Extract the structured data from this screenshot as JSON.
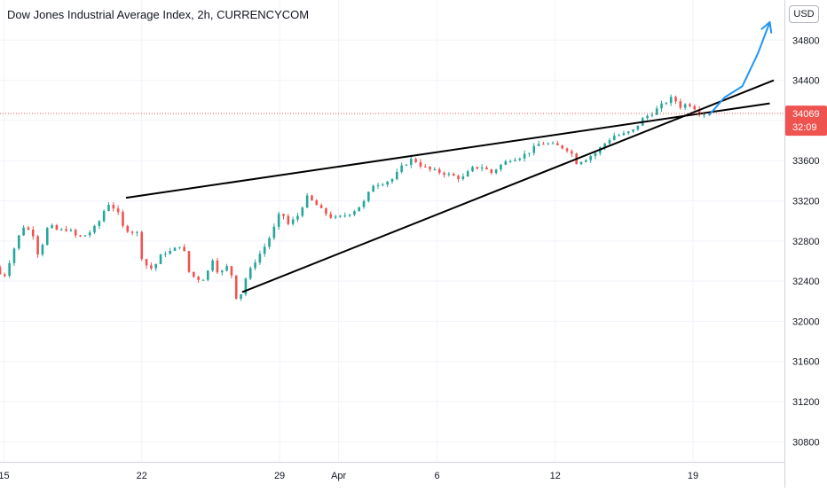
{
  "header": {
    "title": "Dow Jones Industrial Average Index, 2h, CURRENCYCOM",
    "currency": "USD"
  },
  "colors": {
    "up": "#26a69a",
    "down": "#ef5350",
    "trendline": "#000000",
    "projection": "#2196f3",
    "grid": "#f0f3fa",
    "last_price": "#ef5350"
  },
  "chart_data": {
    "type": "candlestick",
    "title": "Dow Jones Industrial Average Index, 2h, CURRENCYCOM",
    "ylim": [
      30600,
      35200
    ],
    "y_ticks": [
      30800,
      31200,
      31600,
      32000,
      32400,
      32800,
      33200,
      33600,
      34000,
      34400,
      34800
    ],
    "x_ticks": [
      {
        "label": "15",
        "day": 15
      },
      {
        "label": "22",
        "day": 22
      },
      {
        "label": "29",
        "day": 29
      },
      {
        "label": "Apr",
        "day": 32
      },
      {
        "label": "6",
        "day": 37
      },
      {
        "label": "12",
        "day": 43
      },
      {
        "label": "19",
        "day": 50
      }
    ],
    "x_domain": [
      14.8,
      54.1
    ],
    "last_price": "34069",
    "countdown": "32:09",
    "price_path": [
      [
        14.8,
        32540
      ],
      [
        15.2,
        32420
      ],
      [
        15.8,
        32750
      ],
      [
        16.2,
        32950
      ],
      [
        16.7,
        32880
      ],
      [
        17.0,
        32650
      ],
      [
        17.5,
        32960
      ],
      [
        18.0,
        32900
      ],
      [
        18.5,
        32920
      ],
      [
        19.0,
        32830
      ],
      [
        19.5,
        32870
      ],
      [
        20.0,
        32960
      ],
      [
        20.5,
        33180
      ],
      [
        21.0,
        33100
      ],
      [
        21.2,
        32950
      ],
      [
        21.6,
        32900
      ],
      [
        22.0,
        32880
      ],
      [
        22.3,
        32580
      ],
      [
        22.8,
        32520
      ],
      [
        23.3,
        32680
      ],
      [
        23.8,
        32700
      ],
      [
        24.3,
        32780
      ],
      [
        24.6,
        32500
      ],
      [
        25.0,
        32420
      ],
      [
        25.5,
        32430
      ],
      [
        25.8,
        32640
      ],
      [
        26.2,
        32450
      ],
      [
        26.5,
        32560
      ],
      [
        26.9,
        32430
      ],
      [
        27.1,
        32160
      ],
      [
        27.5,
        32420
      ],
      [
        28.0,
        32600
      ],
      [
        28.5,
        32750
      ],
      [
        28.9,
        32900
      ],
      [
        29.3,
        33100
      ],
      [
        29.7,
        32960
      ],
      [
        30.2,
        33060
      ],
      [
        30.6,
        33240
      ],
      [
        31.0,
        33180
      ],
      [
        31.4,
        33100
      ],
      [
        32.0,
        33020
      ],
      [
        32.5,
        33050
      ],
      [
        33.0,
        33100
      ],
      [
        33.5,
        33180
      ],
      [
        34.0,
        33360
      ],
      [
        34.5,
        33380
      ],
      [
        35.0,
        33420
      ],
      [
        35.5,
        33550
      ],
      [
        36.0,
        33620
      ],
      [
        36.5,
        33540
      ],
      [
        37.0,
        33500
      ],
      [
        37.5,
        33480
      ],
      [
        38.0,
        33450
      ],
      [
        38.5,
        33420
      ],
      [
        39.0,
        33520
      ],
      [
        39.5,
        33540
      ],
      [
        40.0,
        33480
      ],
      [
        40.5,
        33560
      ],
      [
        41.0,
        33620
      ],
      [
        41.5,
        33640
      ],
      [
        42.0,
        33700
      ],
      [
        42.5,
        33780
      ],
      [
        43.0,
        33760
      ],
      [
        43.5,
        33740
      ],
      [
        44.0,
        33700
      ],
      [
        44.3,
        33580
      ],
      [
        44.8,
        33620
      ],
      [
        45.3,
        33680
      ],
      [
        45.8,
        33780
      ],
      [
        46.2,
        33850
      ],
      [
        46.7,
        33860
      ],
      [
        47.2,
        33900
      ],
      [
        47.7,
        34020
      ],
      [
        48.2,
        34080
      ],
      [
        48.7,
        34160
      ],
      [
        49.2,
        34230
      ],
      [
        49.6,
        34140
      ],
      [
        50.0,
        34170
      ],
      [
        50.3,
        34130
      ],
      [
        50.6,
        34069
      ]
    ],
    "trendlines": [
      {
        "name": "upper",
        "from": [
          21.2,
          33230
        ],
        "to": [
          53.9,
          34170
        ]
      },
      {
        "name": "lower",
        "from": [
          27.1,
          32290
        ],
        "to": [
          54.1,
          34400
        ]
      }
    ],
    "projection": [
      [
        50.8,
        34050
      ],
      [
        51.6,
        34230
      ],
      [
        52.5,
        34340
      ],
      [
        53.3,
        34670
      ],
      [
        53.9,
        34980
      ]
    ]
  }
}
